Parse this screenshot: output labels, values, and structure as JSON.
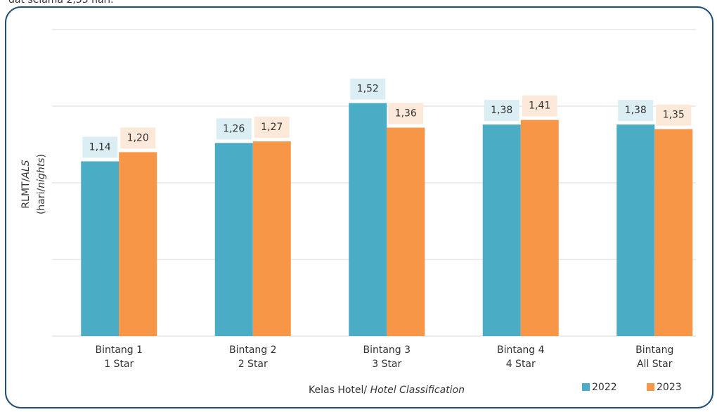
{
  "chart_data": {
    "type": "bar",
    "caption_fragment": "dat selama 2,35 hari.",
    "y_label": {
      "line1": [
        "RLMT/",
        "ALS"
      ],
      "line2": [
        "(hari/",
        "nights",
        ")"
      ]
    },
    "x_label": [
      "Kelas Hotel/ ",
      "Hotel Classification"
    ],
    "categories": [
      [
        "Bintang 1",
        "1 Star"
      ],
      [
        "Bintang 2",
        "2 Star"
      ],
      [
        "Bintang 3",
        "3 Star"
      ],
      [
        "Bintang 4",
        "4 Star"
      ],
      [
        "Bintang",
        "All Star"
      ]
    ],
    "series": [
      {
        "name": "2022",
        "color": "#4bacc6",
        "label_bg": "#dbeef4",
        "values": [
          1.14,
          1.26,
          1.52,
          1.38,
          1.38
        ],
        "value_labels": [
          "1,14",
          "1,26",
          "1,52",
          "1,38",
          "1,38"
        ]
      },
      {
        "name": "2023",
        "color": "#f79646",
        "label_bg": "#fde9d9",
        "values": [
          1.2,
          1.27,
          1.36,
          1.41,
          1.35
        ],
        "value_labels": [
          "1,20",
          "1,27",
          "1,36",
          "1,41",
          "1,35"
        ]
      }
    ],
    "ylim": [
      0,
      2
    ],
    "yticks": [
      0,
      0.5,
      1,
      1.5,
      2
    ],
    "grid": true,
    "legend": "bottom-right"
  }
}
